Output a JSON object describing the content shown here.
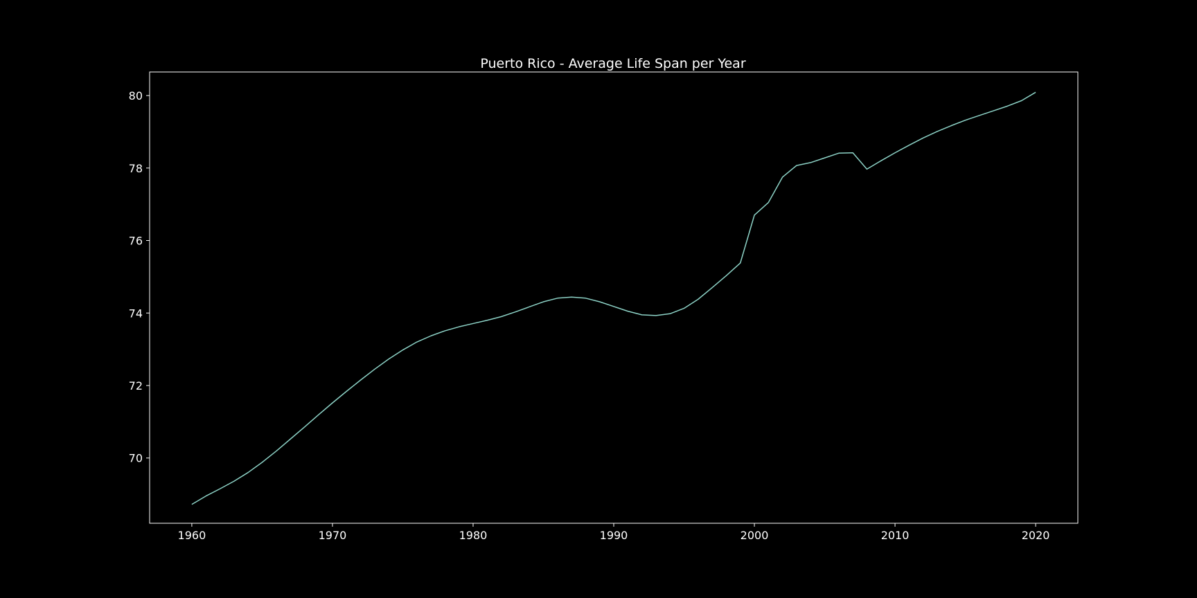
{
  "chart_data": {
    "type": "line",
    "title": "Puerto Rico - Average Life Span per Year",
    "xlabel": "",
    "ylabel": "",
    "xlim": [
      1957,
      2023
    ],
    "ylim": [
      68.2,
      80.65
    ],
    "x_ticks": [
      1960,
      1970,
      1980,
      1990,
      2000,
      2010,
      2020
    ],
    "y_ticks": [
      70,
      72,
      74,
      76,
      78,
      80
    ],
    "grid": false,
    "legend": "none",
    "colors": {
      "background": "#000000",
      "axes": "#ffffff",
      "line": "#8dd3c7",
      "text": "#ffffff"
    },
    "series": [
      {
        "x": [
          1960,
          1961,
          1962,
          1963,
          1964,
          1965,
          1966,
          1967,
          1968,
          1969,
          1970,
          1971,
          1972,
          1973,
          1974,
          1975,
          1976,
          1977,
          1978,
          1979,
          1980,
          1981,
          1982,
          1983,
          1984,
          1985,
          1986,
          1987,
          1988,
          1989,
          1990,
          1991,
          1992,
          1993,
          1994,
          1995,
          1996,
          1997,
          1998,
          1999,
          2000,
          2001,
          2002,
          2003,
          2004,
          2005,
          2006,
          2007,
          2008,
          2009,
          2010,
          2011,
          2012,
          2013,
          2014,
          2015,
          2016,
          2017,
          2018,
          2019,
          2020
        ],
        "values": [
          68.72,
          68.95,
          69.15,
          69.36,
          69.6,
          69.88,
          70.19,
          70.52,
          70.85,
          71.19,
          71.52,
          71.84,
          72.15,
          72.45,
          72.73,
          72.98,
          73.2,
          73.37,
          73.51,
          73.62,
          73.71,
          73.8,
          73.9,
          74.03,
          74.17,
          74.31,
          74.41,
          74.44,
          74.41,
          74.31,
          74.18,
          74.05,
          73.95,
          73.93,
          73.98,
          74.13,
          74.38,
          74.7,
          75.03,
          75.38,
          76.7,
          77.05,
          77.75,
          78.07,
          78.15,
          78.28,
          78.41,
          78.42,
          77.97,
          78.2,
          78.42,
          78.63,
          78.83,
          79.01,
          79.17,
          79.32,
          79.45,
          79.58,
          79.71,
          79.86,
          80.09
        ]
      }
    ]
  }
}
